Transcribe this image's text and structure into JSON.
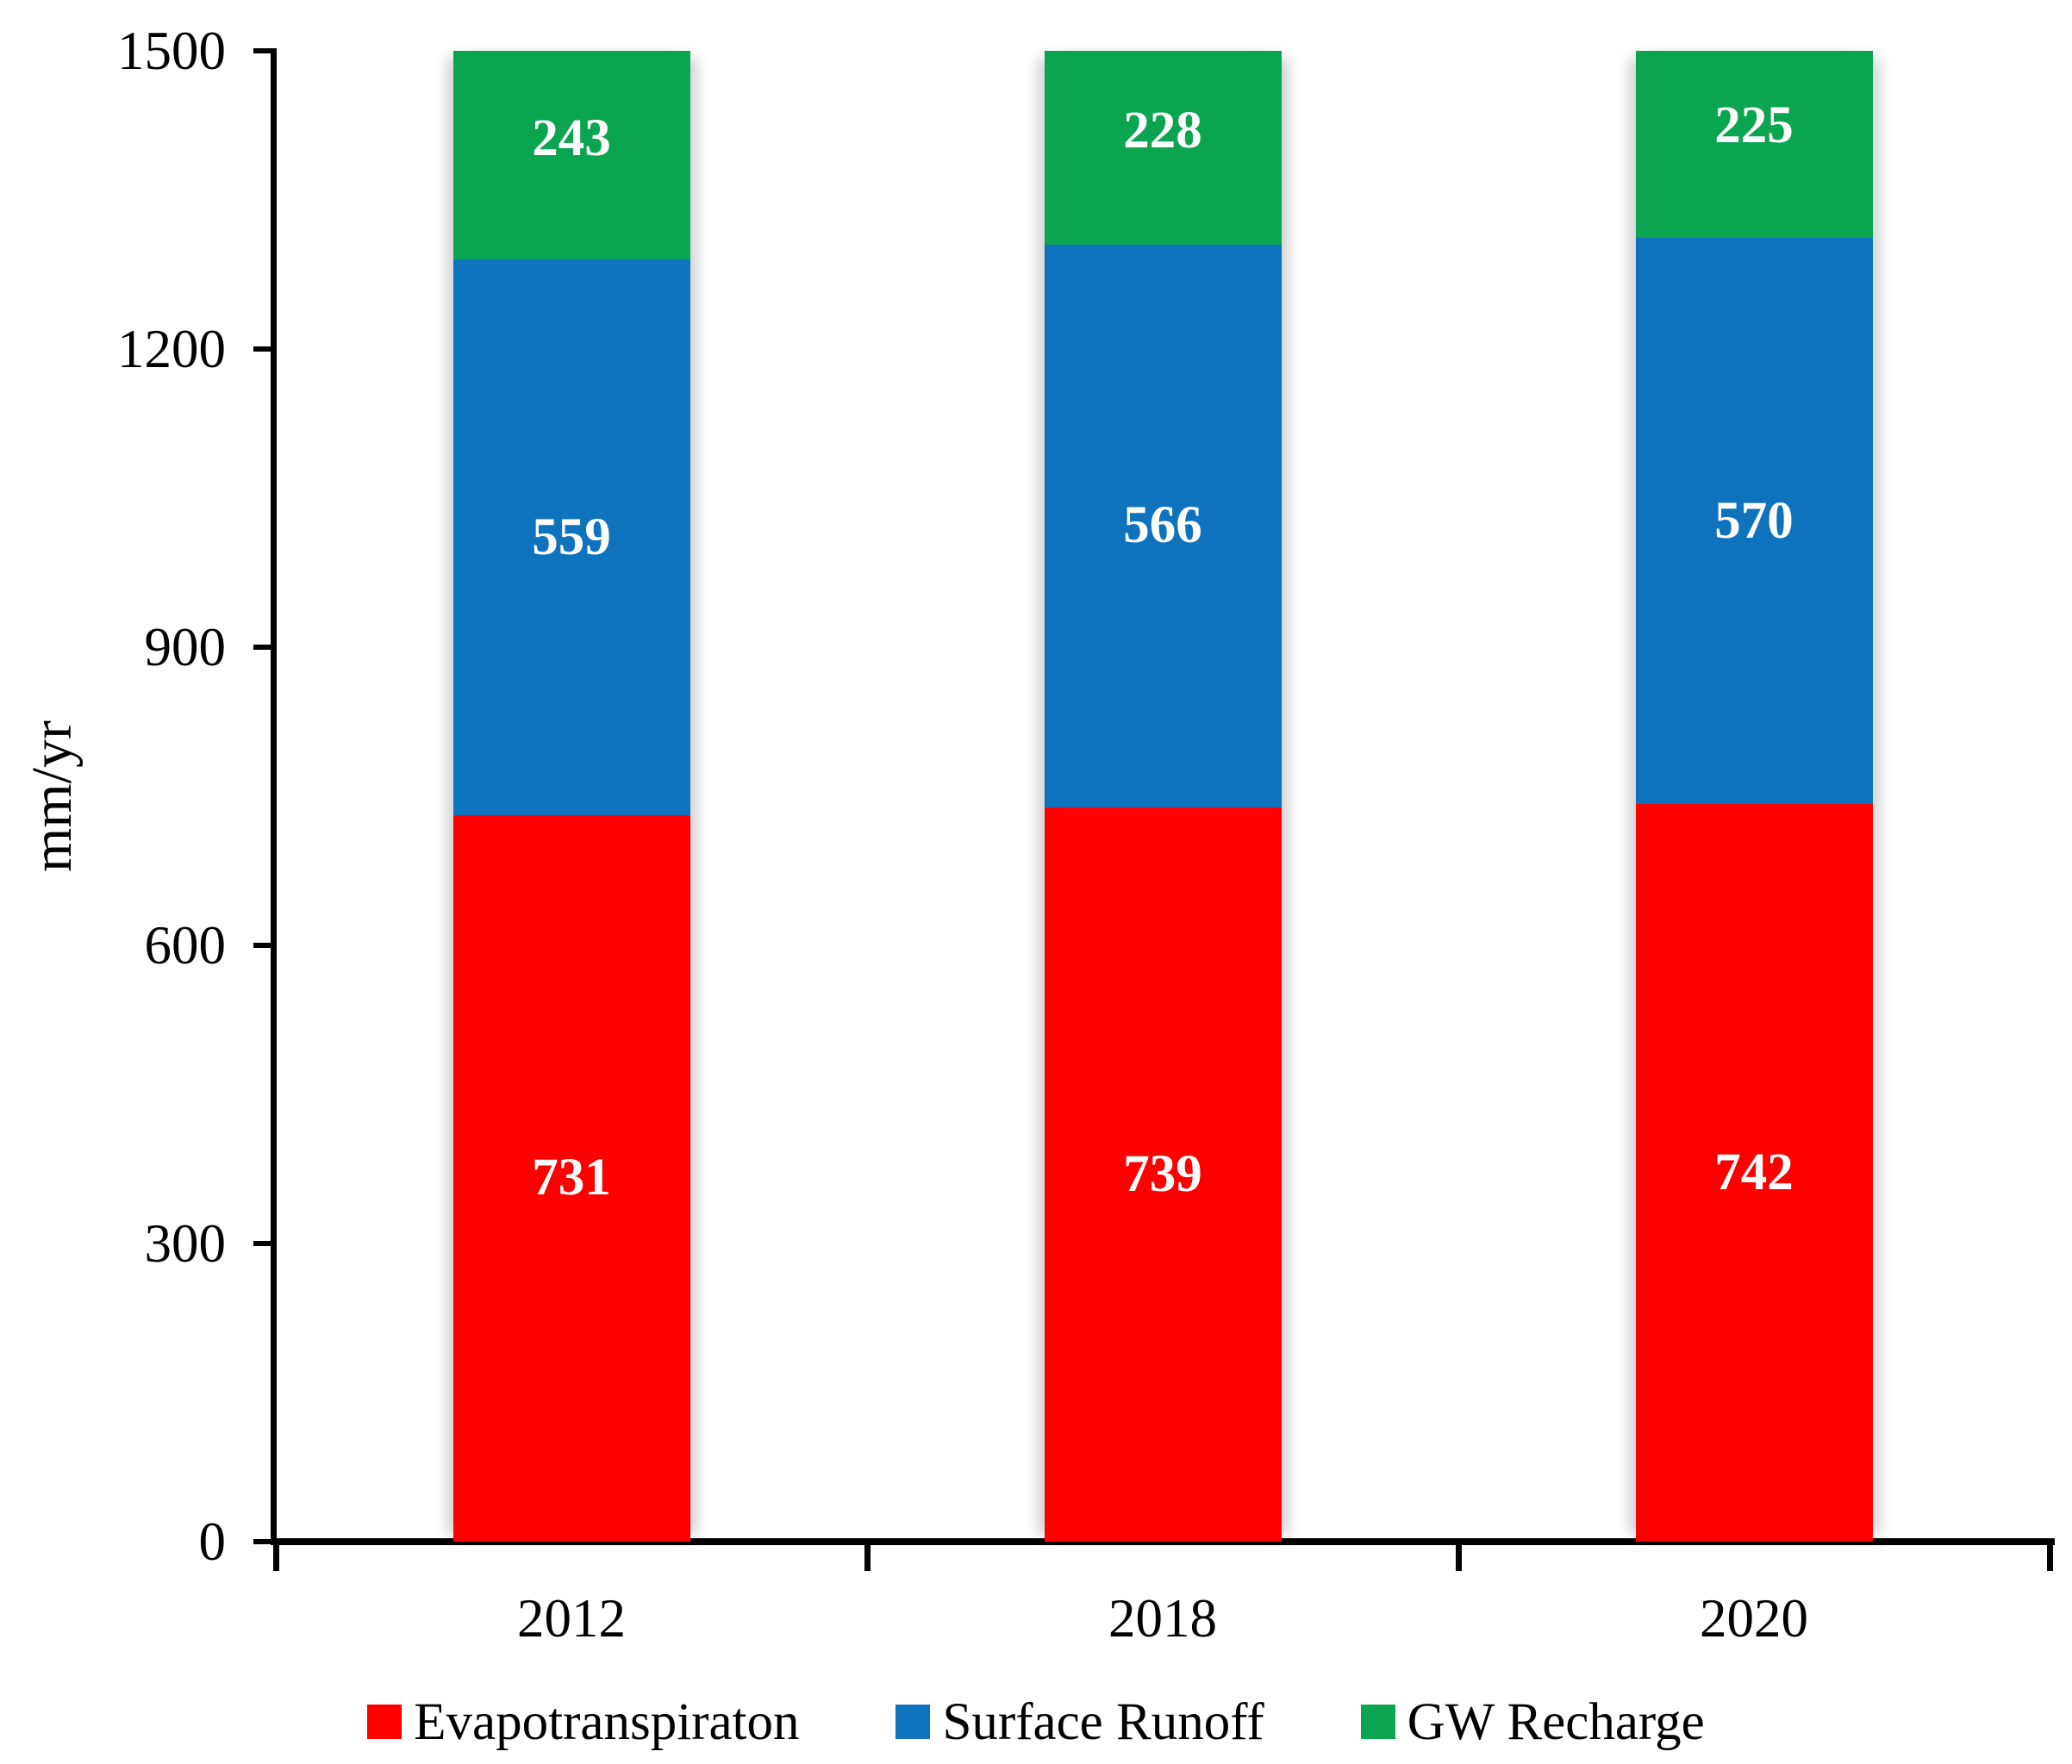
{
  "chart_data": {
    "type": "bar",
    "stacked": true,
    "categories": [
      "2012",
      "2018",
      "2020"
    ],
    "series": [
      {
        "name": "Evapotranspiraton",
        "color": "#FF0000",
        "values": [
          731,
          739,
          742
        ]
      },
      {
        "name": "Surface Runoff",
        "color": "#0F72BC",
        "values": [
          559,
          566,
          570
        ]
      },
      {
        "name": "GW Recharge",
        "color": "#0BA551",
        "values": [
          243,
          228,
          225
        ]
      }
    ],
    "title": "",
    "xlabel": "",
    "ylabel": "mm/yr",
    "yticks": [
      0,
      300,
      600,
      900,
      1200,
      1500
    ],
    "ylim": [
      0,
      1500
    ],
    "grid": false,
    "legend_position": "bottom",
    "bar_label_color": "#FFFFFF",
    "axis_color": "#000000"
  }
}
